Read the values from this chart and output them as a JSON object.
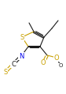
{
  "background": "#ffffff",
  "bond_color": "#1a1a1a",
  "atom_colors": {
    "S": "#c8a000",
    "O": "#c8a000",
    "N": "#0000ee",
    "C": "#1a1a1a"
  },
  "figsize": [
    0.84,
    1.19
  ],
  "dpi": 100
}
